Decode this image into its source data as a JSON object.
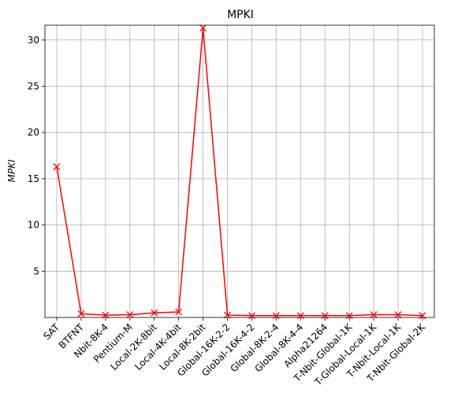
{
  "chart_data": {
    "type": "line",
    "title": "MPKI",
    "xlabel": "",
    "ylabel": "MPKI",
    "categories": [
      "SAT",
      "BTFNT",
      "Nbit-8K-4",
      "Pentium-M",
      "Local-2K-8bit",
      "Local-4K-4bit",
      "Local-8K-2bit",
      "Global-16K-2-2",
      "Global-16K-4-2",
      "Global-8K-2-4",
      "Global-8K-4-4",
      "Alpha21264",
      "T-Nbit-Global-1K",
      "T-Global-Local-1K",
      "T-Nbit-Local-1K",
      "T-Nbit-Global-2K"
    ],
    "series": [
      {
        "values": [
          16.3,
          0.4,
          0.25,
          0.3,
          0.5,
          0.6,
          31.3,
          0.25,
          0.2,
          0.2,
          0.2,
          0.2,
          0.2,
          0.3,
          0.3,
          0.2
        ],
        "color": "#ff0000",
        "marker": "x"
      }
    ],
    "yticks": [
      5,
      10,
      15,
      20,
      25,
      30
    ],
    "ylim": [
      0.0,
      31.6
    ],
    "grid": true
  }
}
